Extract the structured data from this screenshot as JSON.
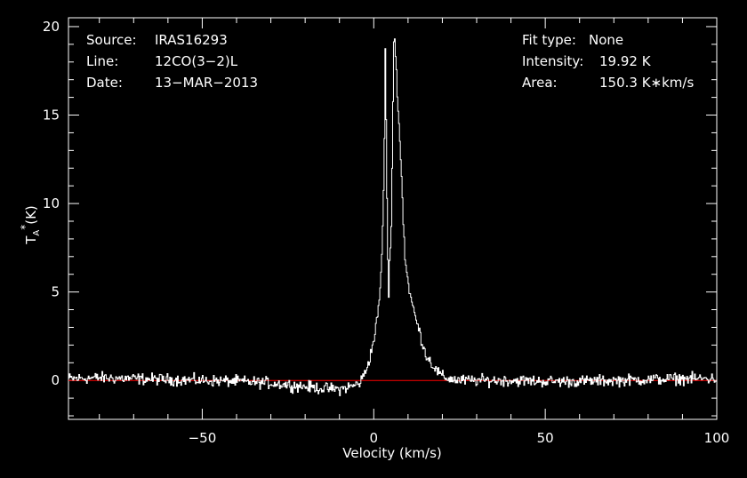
{
  "info": {
    "source_label": "Source:",
    "source_value": "IRAS16293",
    "line_label": "Line:",
    "line_value": "12CO(3−2)L",
    "date_label": "Date:",
    "date_value": "13−MAR−2013",
    "fit_label": "Fit type:",
    "fit_value": "None",
    "intensity_label": "Intensity:",
    "intensity_value": "19.92 K",
    "area_label": "Area:",
    "area_value": "150.3 K∗km/s"
  },
  "colors": {
    "background": "#000000",
    "foreground": "#ffffff",
    "baseline": "#ff0000"
  },
  "chart_data": {
    "type": "line",
    "xlabel": "Velocity (km/s)",
    "ylabel": "T*A (K)",
    "ylabel_main": "T",
    "ylabel_sub": "A",
    "ylabel_sup": "*",
    "ylabel_unit": "(K)",
    "xlim": [
      -89,
      100
    ],
    "ylim": [
      -2.2,
      20.5
    ],
    "x_ticks": [
      -50,
      0,
      50,
      100
    ],
    "x_tick_labels": [
      "−50",
      "0",
      "50",
      "100"
    ],
    "y_ticks": [
      0,
      5,
      10,
      15,
      20
    ],
    "y_tick_labels": [
      "0",
      "5",
      "10",
      "15",
      "20"
    ],
    "baseline_value": 0,
    "series": [
      {
        "color": "#ffffff",
        "x": [
          -89,
          -80,
          -70,
          -60,
          -50,
          -40,
          -30,
          -20,
          -15,
          -10,
          -8,
          -6,
          -4,
          -3,
          -2,
          -1,
          0,
          1,
          1.5,
          2,
          2.5,
          3,
          3.3,
          3.6,
          3.9,
          4.2,
          4.5,
          4.8,
          5.1,
          5.4,
          5.7,
          6,
          6.3,
          6.6,
          7,
          7.5,
          8,
          8.5,
          9,
          10,
          11,
          12,
          13,
          14,
          15,
          16,
          17,
          18,
          19,
          20,
          22,
          25,
          30,
          40,
          50,
          60,
          70,
          80,
          90,
          100
        ],
        "y": [
          0.1,
          0.15,
          0.1,
          0.05,
          0.0,
          -0.05,
          -0.15,
          -0.35,
          -0.45,
          -0.5,
          -0.4,
          -0.3,
          -0.1,
          0.3,
          0.8,
          1.5,
          2.4,
          3.6,
          4.6,
          6.0,
          8.5,
          13.5,
          19.9,
          12.0,
          8.5,
          4.2,
          6.5,
          7.5,
          9.5,
          14.5,
          19.0,
          19.4,
          18.0,
          17.0,
          15.5,
          13.5,
          11.5,
          9.0,
          7.0,
          5.4,
          4.4,
          3.6,
          2.9,
          2.2,
          1.5,
          1.2,
          0.9,
          0.6,
          0.4,
          0.2,
          0.1,
          0.0,
          0.0,
          0.0,
          -0.05,
          -0.05,
          0.0,
          0.05,
          0.1,
          0.1
        ]
      }
    ],
    "legend": "none",
    "grid": false
  }
}
